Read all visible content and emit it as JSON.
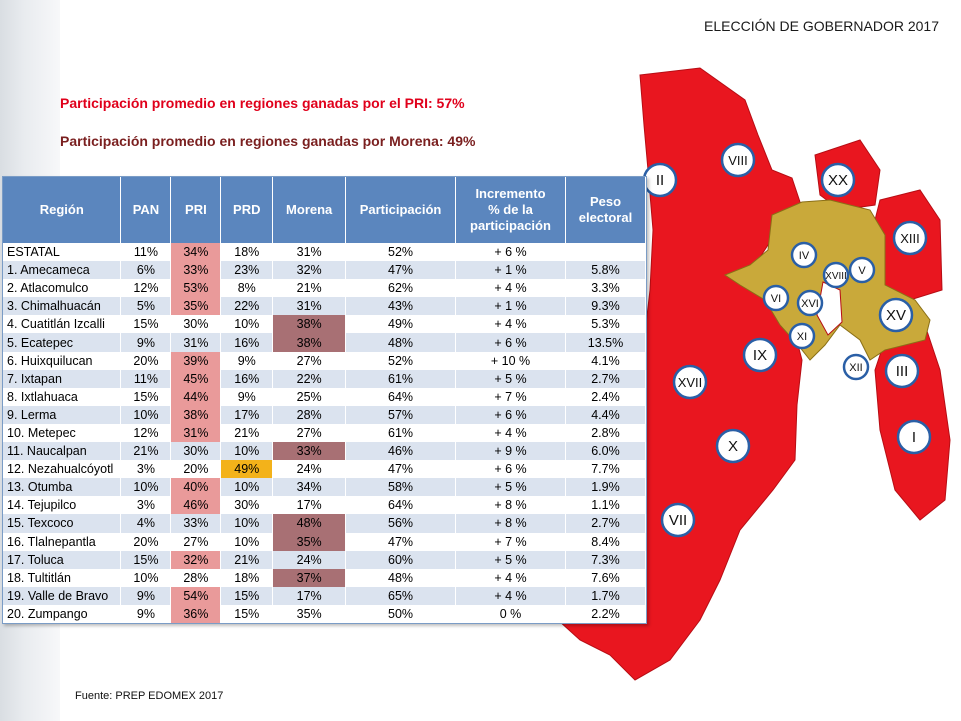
{
  "title": "ELECCIÓN DE GOBERNADOR 2017",
  "headline_pri": "Participación promedio en regiones ganadas por el PRI: 57%",
  "headline_morena": "Participación promedio en regiones  ganadas por Morena:  49%",
  "source": "Fuente: PREP EDOMEX  2017",
  "colors": {
    "pri_win": "#e9161f",
    "morena_win": "#c9a93a",
    "highlight_pri": "#e99a9a",
    "highlight_morena": "#a87074",
    "highlight_prd": "#f3b21a",
    "header_blue": "#5b86be"
  },
  "table": {
    "headers": [
      "Región",
      "PAN",
      "PRI",
      "PRD",
      "Morena",
      "Participación",
      "Incremento % de la participación",
      "Peso electoral"
    ],
    "rows": [
      {
        "region": "ESTATAL",
        "pan": "11%",
        "pri": "34%",
        "prd": "18%",
        "morena": "31%",
        "part": "52%",
        "inc": "+ 6 %",
        "peso": "",
        "hl": "pri"
      },
      {
        "region": "1. Amecameca",
        "pan": "6%",
        "pri": "33%",
        "prd": "23%",
        "morena": "32%",
        "part": "47%",
        "inc": "+ 1 %",
        "peso": "5.8%",
        "hl": "pri"
      },
      {
        "region": "2. Atlacomulco",
        "pan": "12%",
        "pri": "53%",
        "prd": "8%",
        "morena": "21%",
        "part": "62%",
        "inc": "+ 4 %",
        "peso": "3.3%",
        "hl": "pri"
      },
      {
        "region": "3. Chimalhuacán",
        "pan": "5%",
        "pri": "35%",
        "prd": "22%",
        "morena": "31%",
        "part": "43%",
        "inc": "+ 1 %",
        "peso": "9.3%",
        "hl": "pri"
      },
      {
        "region": "4. Cuatitlán Izcalli",
        "pan": "15%",
        "pri": "30%",
        "prd": "10%",
        "morena": "38%",
        "part": "49%",
        "inc": "+ 4 %",
        "peso": "5.3%",
        "hl": "morena"
      },
      {
        "region": "5. Ecatepec",
        "pan": "9%",
        "pri": "31%",
        "prd": "16%",
        "morena": "38%",
        "part": "48%",
        "inc": "+ 6 %",
        "peso": "13.5%",
        "hl": "morena"
      },
      {
        "region": "6. Huixquilucan",
        "pan": "20%",
        "pri": "39%",
        "prd": "9%",
        "morena": "27%",
        "part": "52%",
        "inc": "+ 10 %",
        "peso": "4.1%",
        "hl": "pri"
      },
      {
        "region": "7. Ixtapan",
        "pan": "11%",
        "pri": "45%",
        "prd": "16%",
        "morena": "22%",
        "part": "61%",
        "inc": "+ 5 %",
        "peso": "2.7%",
        "hl": "pri"
      },
      {
        "region": "8. Ixtlahuaca",
        "pan": "15%",
        "pri": "44%",
        "prd": "9%",
        "morena": "25%",
        "part": "64%",
        "inc": "+ 7 %",
        "peso": "2.4%",
        "hl": "pri"
      },
      {
        "region": "9. Lerma",
        "pan": "10%",
        "pri": "38%",
        "prd": "17%",
        "morena": "28%",
        "part": "57%",
        "inc": "+ 6 %",
        "peso": "4.4%",
        "hl": "pri"
      },
      {
        "region": "10. Metepec",
        "pan": "12%",
        "pri": "31%",
        "prd": "21%",
        "morena": "27%",
        "part": "61%",
        "inc": "+ 4 %",
        "peso": "2.8%",
        "hl": "pri"
      },
      {
        "region": "11. Naucalpan",
        "pan": "21%",
        "pri": "30%",
        "prd": "10%",
        "morena": "33%",
        "part": "46%",
        "inc": "+ 9 %",
        "peso": "6.0%",
        "hl": "morena"
      },
      {
        "region": "12. Nezahualcóyotl",
        "pan": "3%",
        "pri": "20%",
        "prd": "49%",
        "morena": "24%",
        "part": "47%",
        "inc": "+ 6 %",
        "peso": "7.7%",
        "hl": "prd"
      },
      {
        "region": "13. Otumba",
        "pan": "10%",
        "pri": "40%",
        "prd": "10%",
        "morena": "34%",
        "part": "58%",
        "inc": "+ 5 %",
        "peso": "1.9%",
        "hl": "pri"
      },
      {
        "region": "14. Tejupilco",
        "pan": "3%",
        "pri": "46%",
        "prd": "30%",
        "morena": "17%",
        "part": "64%",
        "inc": "+ 8 %",
        "peso": "1.1%",
        "hl": "pri"
      },
      {
        "region": "15. Texcoco",
        "pan": "4%",
        "pri": "33%",
        "prd": "10%",
        "morena": "48%",
        "part": "56%",
        "inc": "+ 8 %",
        "peso": "2.7%",
        "hl": "morena"
      },
      {
        "region": "16. Tlalnepantla",
        "pan": "20%",
        "pri": "27%",
        "prd": "10%",
        "morena": "35%",
        "part": "47%",
        "inc": "+ 7 %",
        "peso": "8.4%",
        "hl": "morena"
      },
      {
        "region": "17. Toluca",
        "pan": "15%",
        "pri": "32%",
        "prd": "21%",
        "morena": "24%",
        "part": "60%",
        "inc": "+ 5 %",
        "peso": "7.3%",
        "hl": "pri"
      },
      {
        "region": "18. Tultitlán",
        "pan": "10%",
        "pri": "28%",
        "prd": "18%",
        "morena": "37%",
        "part": "48%",
        "inc": "+ 4 %",
        "peso": "7.6%",
        "hl": "morena"
      },
      {
        "region": "19. Valle de Bravo",
        "pan": "9%",
        "pri": "54%",
        "prd": "15%",
        "morena": "17%",
        "part": "65%",
        "inc": "+ 4 %",
        "peso": "1.7%",
        "hl": "pri"
      },
      {
        "region": "20. Zumpango",
        "pan": "9%",
        "pri": "36%",
        "prd": "15%",
        "morena": "35%",
        "part": "50%",
        "inc": "0 %",
        "peso": "2.2%",
        "hl": "pri"
      }
    ]
  },
  "map_labels": [
    "I",
    "II",
    "III",
    "IV",
    "V",
    "VI",
    "VII",
    "VIII",
    "IX",
    "X",
    "XI",
    "XII",
    "XIII",
    "XV",
    "XVI",
    "XVII",
    "XVIII",
    "XX"
  ]
}
